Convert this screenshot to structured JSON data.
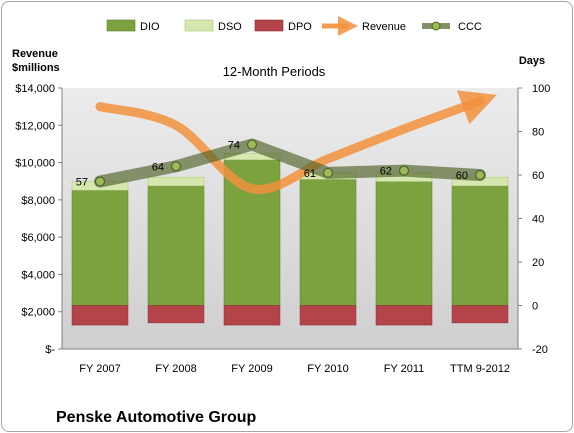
{
  "chart_data": {
    "type": "bar",
    "subtitle": "12-Month Periods",
    "company": "Penske Automotive Group",
    "left_axis_title": [
      "Revenue",
      "$millions"
    ],
    "right_axis_title": "Days",
    "categories": [
      "FY 2007",
      "FY 2008",
      "FY 2009",
      "FY 2010",
      "FY 2011",
      "TTM 9-2012"
    ],
    "left_ticks": [
      "$-",
      "$2,000",
      "$4,000",
      "$6,000",
      "$8,000",
      "$10,000",
      "$12,000",
      "$14,000"
    ],
    "left_range": [
      0,
      14000
    ],
    "right_ticks": [
      "-20",
      "0",
      "20",
      "40",
      "60",
      "80",
      "100"
    ],
    "right_range": [
      -20,
      100
    ],
    "legend_position": "top",
    "series": [
      {
        "name": "DIO",
        "kind": "bar",
        "axis": "right",
        "color": "#7ba23f",
        "values": [
          53,
          55,
          67,
          58,
          57,
          55
        ]
      },
      {
        "name": "DSO",
        "kind": "bar",
        "axis": "right",
        "color": "#d6e7b0",
        "values": [
          4,
          4,
          3,
          3,
          4,
          4
        ]
      },
      {
        "name": "DPO",
        "kind": "bar",
        "axis": "right",
        "color": "#b5434a",
        "values": [
          -9,
          -8,
          -9,
          -9,
          -9,
          -8
        ]
      },
      {
        "name": "Revenue",
        "kind": "line",
        "axis": "left",
        "color": "#f2913d",
        "values": [
          13000,
          12000,
          8600,
          10200,
          11800,
          13300
        ]
      },
      {
        "name": "CCC",
        "kind": "line",
        "axis": "right",
        "color": "#4f6228",
        "values": [
          57,
          64,
          74,
          61,
          62,
          60
        ],
        "labels": [
          "57",
          "64",
          "74",
          "61",
          "62",
          "60"
        ]
      }
    ],
    "grid": false
  }
}
